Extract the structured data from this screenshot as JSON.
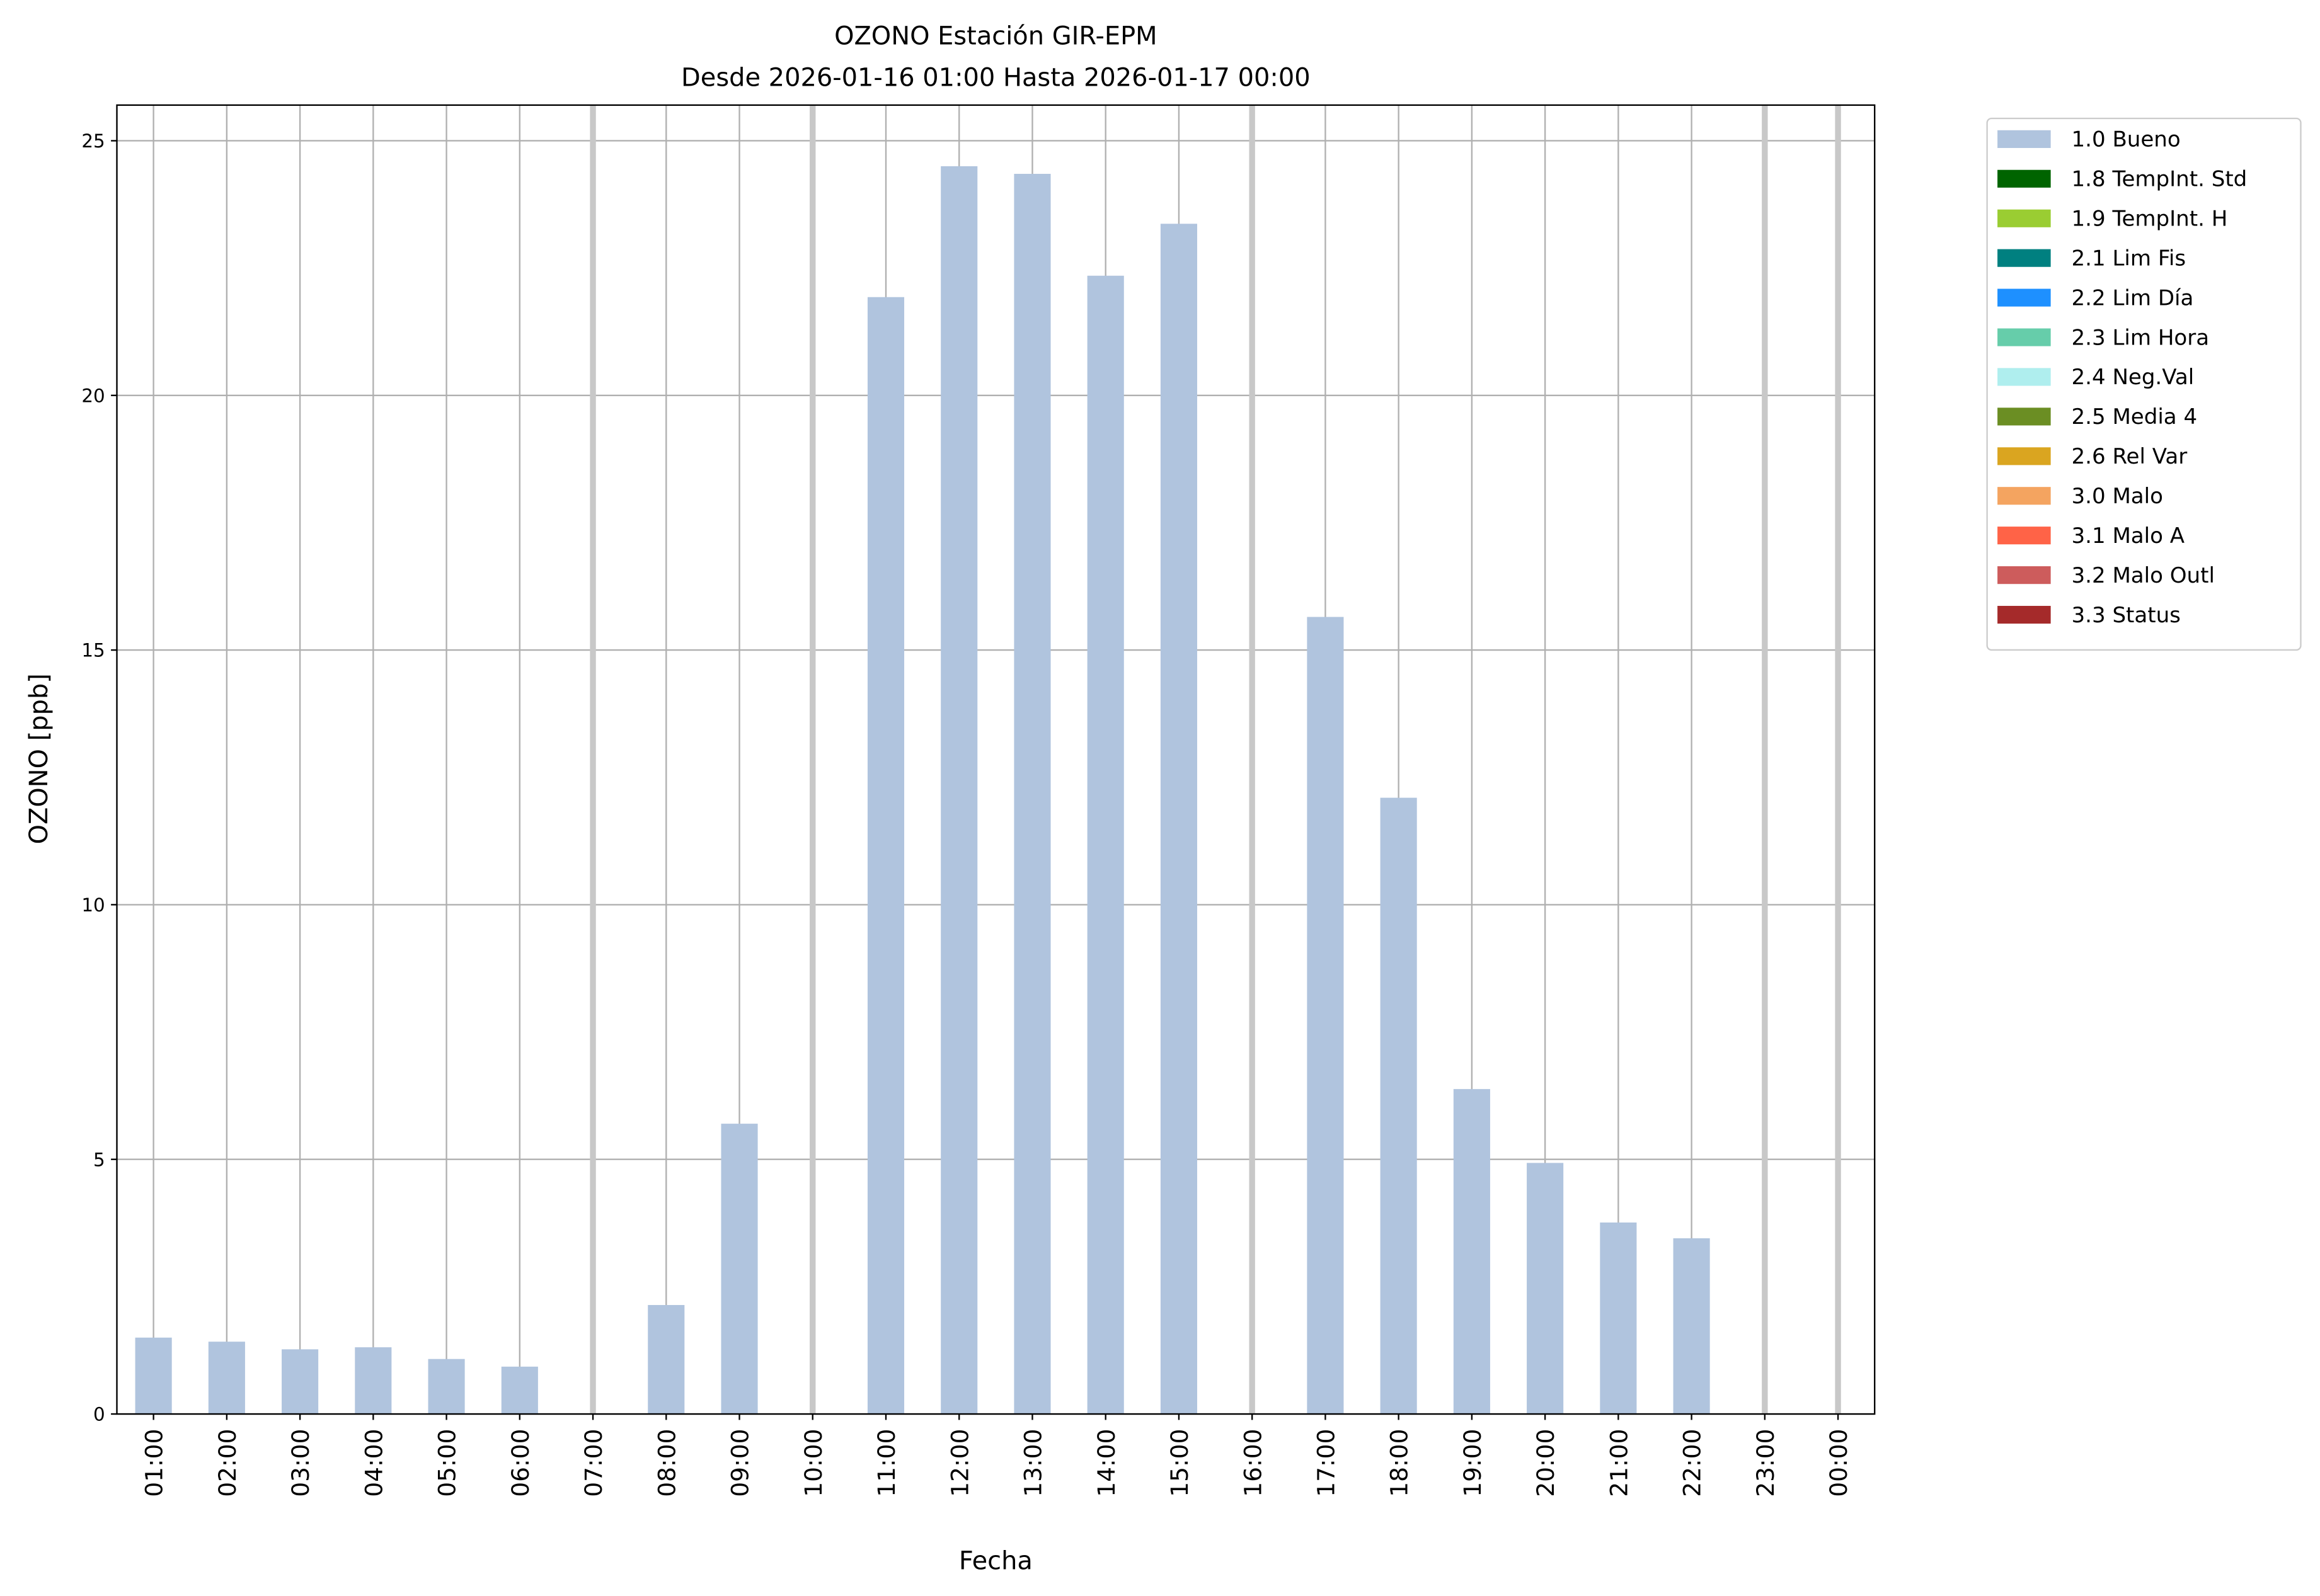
{
  "chart_data": {
    "type": "bar",
    "title": "OZONO Estación GIR-EPM",
    "subtitle": "Desde 2026-01-16 01:00 Hasta 2026-01-17 00:00",
    "x_label": "Fecha",
    "y_label": "OZONO [ppb]",
    "categories": [
      "01:00",
      "02:00",
      "03:00",
      "04:00",
      "05:00",
      "06:00",
      "07:00",
      "08:00",
      "09:00",
      "10:00",
      "11:00",
      "12:00",
      "13:00",
      "14:00",
      "15:00",
      "16:00",
      "17:00",
      "18:00",
      "19:00",
      "20:00",
      "21:00",
      "22:00",
      "23:00",
      "00:00"
    ],
    "series": [
      {
        "name": "1.0 Bueno",
        "color": "#b0c4de",
        "values": [
          1.5,
          1.42,
          1.27,
          1.31,
          1.08,
          0.93,
          null,
          2.14,
          5.7,
          null,
          21.93,
          24.5,
          24.35,
          22.35,
          23.37,
          null,
          15.65,
          12.1,
          6.38,
          4.93,
          3.76,
          3.45,
          null,
          null
        ]
      },
      {
        "name": "1.8 TempInt. Std",
        "color": "#006400"
      },
      {
        "name": "1.9 TempInt. H",
        "color": "#9acd32"
      },
      {
        "name": "2.1 Lim Fis",
        "color": "#008080"
      },
      {
        "name": "2.2 Lim Día",
        "color": "#1e90ff"
      },
      {
        "name": "2.3 Lim Hora",
        "color": "#66cdaa"
      },
      {
        "name": "2.4 Neg.Val",
        "color": "#afeeee"
      },
      {
        "name": "2.5 Media 4",
        "color": "#6b8e23"
      },
      {
        "name": "2.6 Rel Var",
        "color": "#daa520"
      },
      {
        "name": "3.0 Malo",
        "color": "#f4a460"
      },
      {
        "name": "3.1 Malo A",
        "color": "#ff6347"
      },
      {
        "name": "3.2 Malo Outl",
        "color": "#cd5c5c"
      },
      {
        "name": "3.3 Status",
        "color": "#a52a2a"
      }
    ],
    "ylim": [
      0,
      25.7
    ],
    "yticks": [
      0,
      5,
      10,
      15,
      20,
      25
    ],
    "grid": true,
    "legend": "outside-upper-right"
  }
}
